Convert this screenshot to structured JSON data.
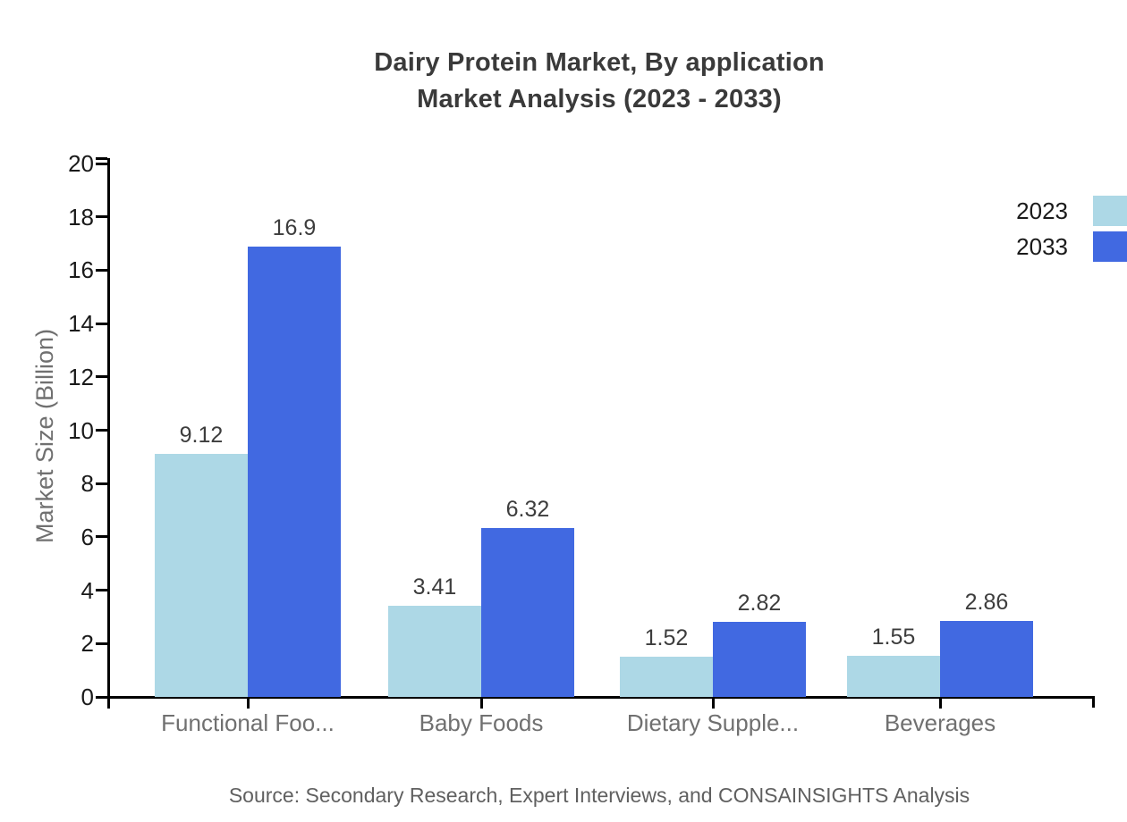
{
  "title": {
    "line1": "Dairy Protein Market, By application",
    "line2": "Market Analysis (2023 - 2033)"
  },
  "chart_data": {
    "type": "bar",
    "title": "Dairy Protein Market, By application Market Analysis (2023 - 2033)",
    "categories": [
      "Functional Foo...",
      "Baby Foods",
      "Dietary Supple...",
      "Beverages"
    ],
    "series": [
      {
        "name": "2023",
        "color": "#ADD8E6",
        "values": [
          9.12,
          3.41,
          1.52,
          1.55
        ]
      },
      {
        "name": "2033",
        "color": "#4169E1",
        "values": [
          16.9,
          6.32,
          2.82,
          2.86
        ]
      }
    ],
    "xlabel": "",
    "ylabel": "Market Size (Billion)",
    "ylim": [
      0,
      20
    ],
    "ytick_step": 2,
    "yticks": [
      0,
      2,
      4,
      6,
      8,
      10,
      12,
      14,
      16,
      18,
      20
    ],
    "grid": false,
    "legend_position": "top-right-edge",
    "bar_value_labels_shown": true
  },
  "source_note": "Source: Secondary Research, Expert Interviews, and CONSAINSIGHTS Analysis",
  "colors": {
    "series_2023": "#ADD8E6",
    "series_2033": "#4169E1",
    "axis": "#000000",
    "title_text": "#3A3A3A",
    "tick_label_text": "#1A1A1A",
    "value_label_text": "#3D3D3D",
    "category_label_text": "#707070",
    "axis_title_text": "#707070",
    "source_text": "#606060",
    "background": "#FFFFFF"
  }
}
